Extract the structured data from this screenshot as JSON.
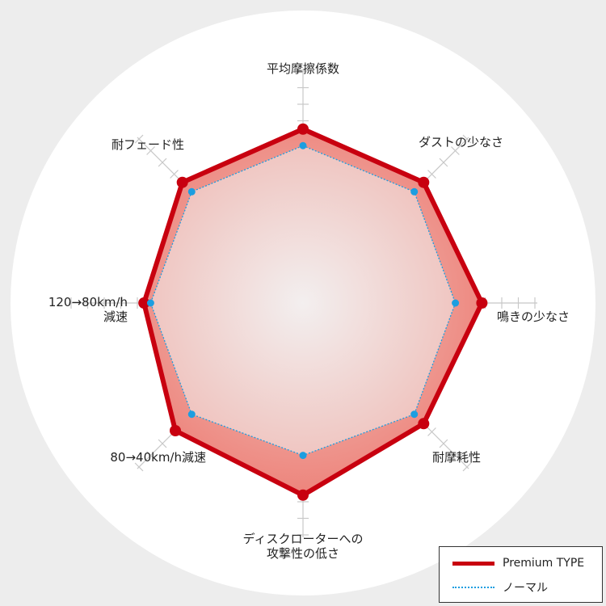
{
  "chart_data": {
    "type": "radar",
    "axes": [
      {
        "label": [
          "平均摩擦係数"
        ],
        "anchor": "middle"
      },
      {
        "label": [
          "ダストの少なさ"
        ],
        "anchor": "start"
      },
      {
        "label": [
          "鳴きの少なさ"
        ],
        "anchor": "start"
      },
      {
        "label": [
          "耐摩耗性"
        ],
        "anchor": "start"
      },
      {
        "label": [
          "ディスクローターへの",
          "攻撃性の低さ"
        ],
        "anchor": "middle"
      },
      {
        "label": [
          "80→40km/h減速"
        ],
        "anchor": "end"
      },
      {
        "label": [
          "120→80km/h",
          "減速"
        ],
        "anchor": "end"
      },
      {
        "label": [
          "耐フェード性"
        ],
        "anchor": "end"
      }
    ],
    "range": [
      0,
      10
    ],
    "grid_ticks": 10,
    "series": [
      {
        "name": "Premium TYPE",
        "color": "#c8000f",
        "values": [
          10.5,
          10.3,
          10.8,
          10.3,
          11.6,
          10.9,
          9.6,
          10.3
        ]
      },
      {
        "name": "ノーマル",
        "color": "#1c9ee0",
        "values": [
          9.5,
          9.5,
          9.2,
          9.5,
          9.2,
          9.5,
          9.2,
          9.5
        ]
      }
    ],
    "legend_position": "bottom-right"
  }
}
